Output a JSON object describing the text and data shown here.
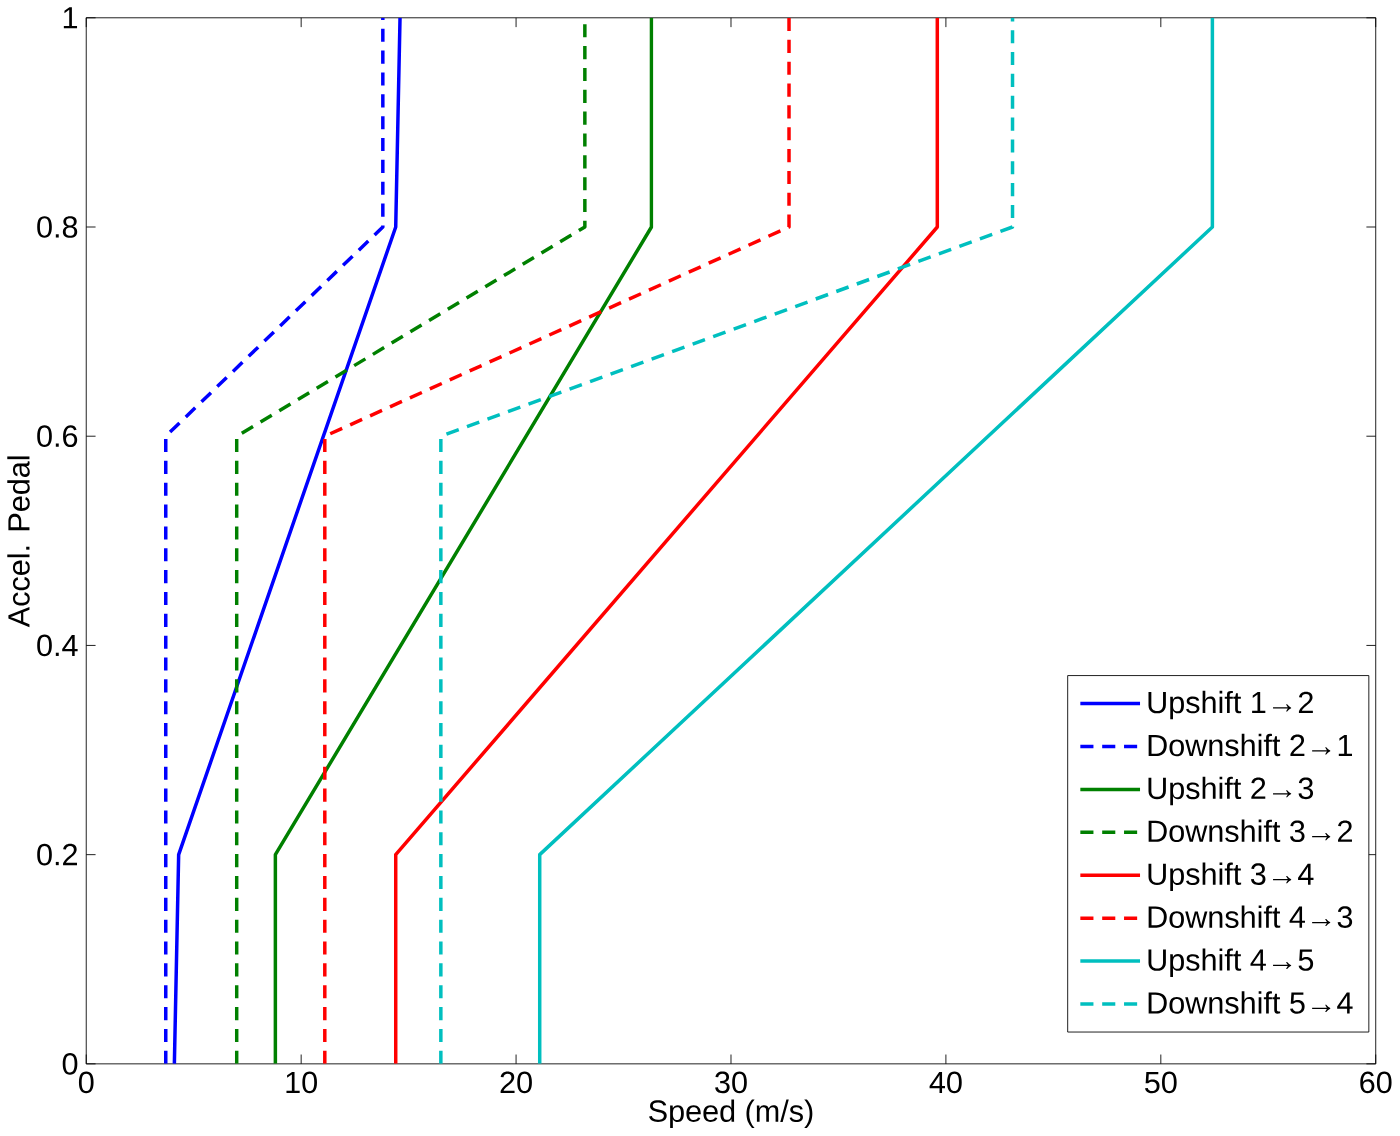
{
  "chart_data": {
    "type": "line",
    "xlabel": "Speed (m/s)",
    "ylabel": "Accel. Pedal",
    "xlim": [
      0,
      60
    ],
    "ylim": [
      0,
      1
    ],
    "xticks": [
      0,
      10,
      20,
      30,
      40,
      50,
      60
    ],
    "yticks": [
      0,
      0.2,
      0.4,
      0.6,
      0.8,
      1
    ],
    "legend": "bottom right",
    "grid": false,
    "series": [
      {
        "name": "Upshift 1→2",
        "color": "#0000ff",
        "line_style": "solid",
        "x": [
          4.1,
          4.3,
          14.4,
          14.6
        ],
        "values": [
          0,
          0.2,
          0.8,
          1
        ]
      },
      {
        "name": "Downshift 2→1",
        "color": "#0000ff",
        "line_style": "dashed",
        "x": [
          3.7,
          3.7,
          13.8,
          13.8
        ],
        "values": [
          0,
          0.6,
          0.8,
          1
        ]
      },
      {
        "name": "Upshift 2→3",
        "color": "#008000",
        "line_style": "solid",
        "x": [
          8.8,
          8.8,
          26.3,
          26.3
        ],
        "values": [
          0,
          0.2,
          0.8,
          1
        ]
      },
      {
        "name": "Downshift 3→2",
        "color": "#008000",
        "line_style": "dashed",
        "x": [
          7.0,
          7.0,
          23.2,
          23.2
        ],
        "values": [
          0,
          0.6,
          0.8,
          1
        ]
      },
      {
        "name": "Upshift 3→4",
        "color": "#ff0000",
        "line_style": "solid",
        "x": [
          14.4,
          14.4,
          39.6,
          39.6
        ],
        "values": [
          0,
          0.2,
          0.8,
          1
        ]
      },
      {
        "name": "Downshift 4→3",
        "color": "#ff0000",
        "line_style": "dashed",
        "x": [
          11.1,
          11.1,
          32.7,
          32.7
        ],
        "values": [
          0,
          0.6,
          0.8,
          1
        ]
      },
      {
        "name": "Upshift 4→5",
        "color": "#00bfbf",
        "line_style": "solid",
        "x": [
          21.1,
          21.1,
          52.4,
          52.4
        ],
        "values": [
          0,
          0.2,
          0.8,
          1
        ]
      },
      {
        "name": "Downshift 5→4",
        "color": "#00bfbf",
        "line_style": "dashed",
        "x": [
          16.5,
          16.5,
          43.1,
          43.1
        ],
        "values": [
          0,
          0.6,
          0.8,
          1
        ]
      }
    ]
  }
}
